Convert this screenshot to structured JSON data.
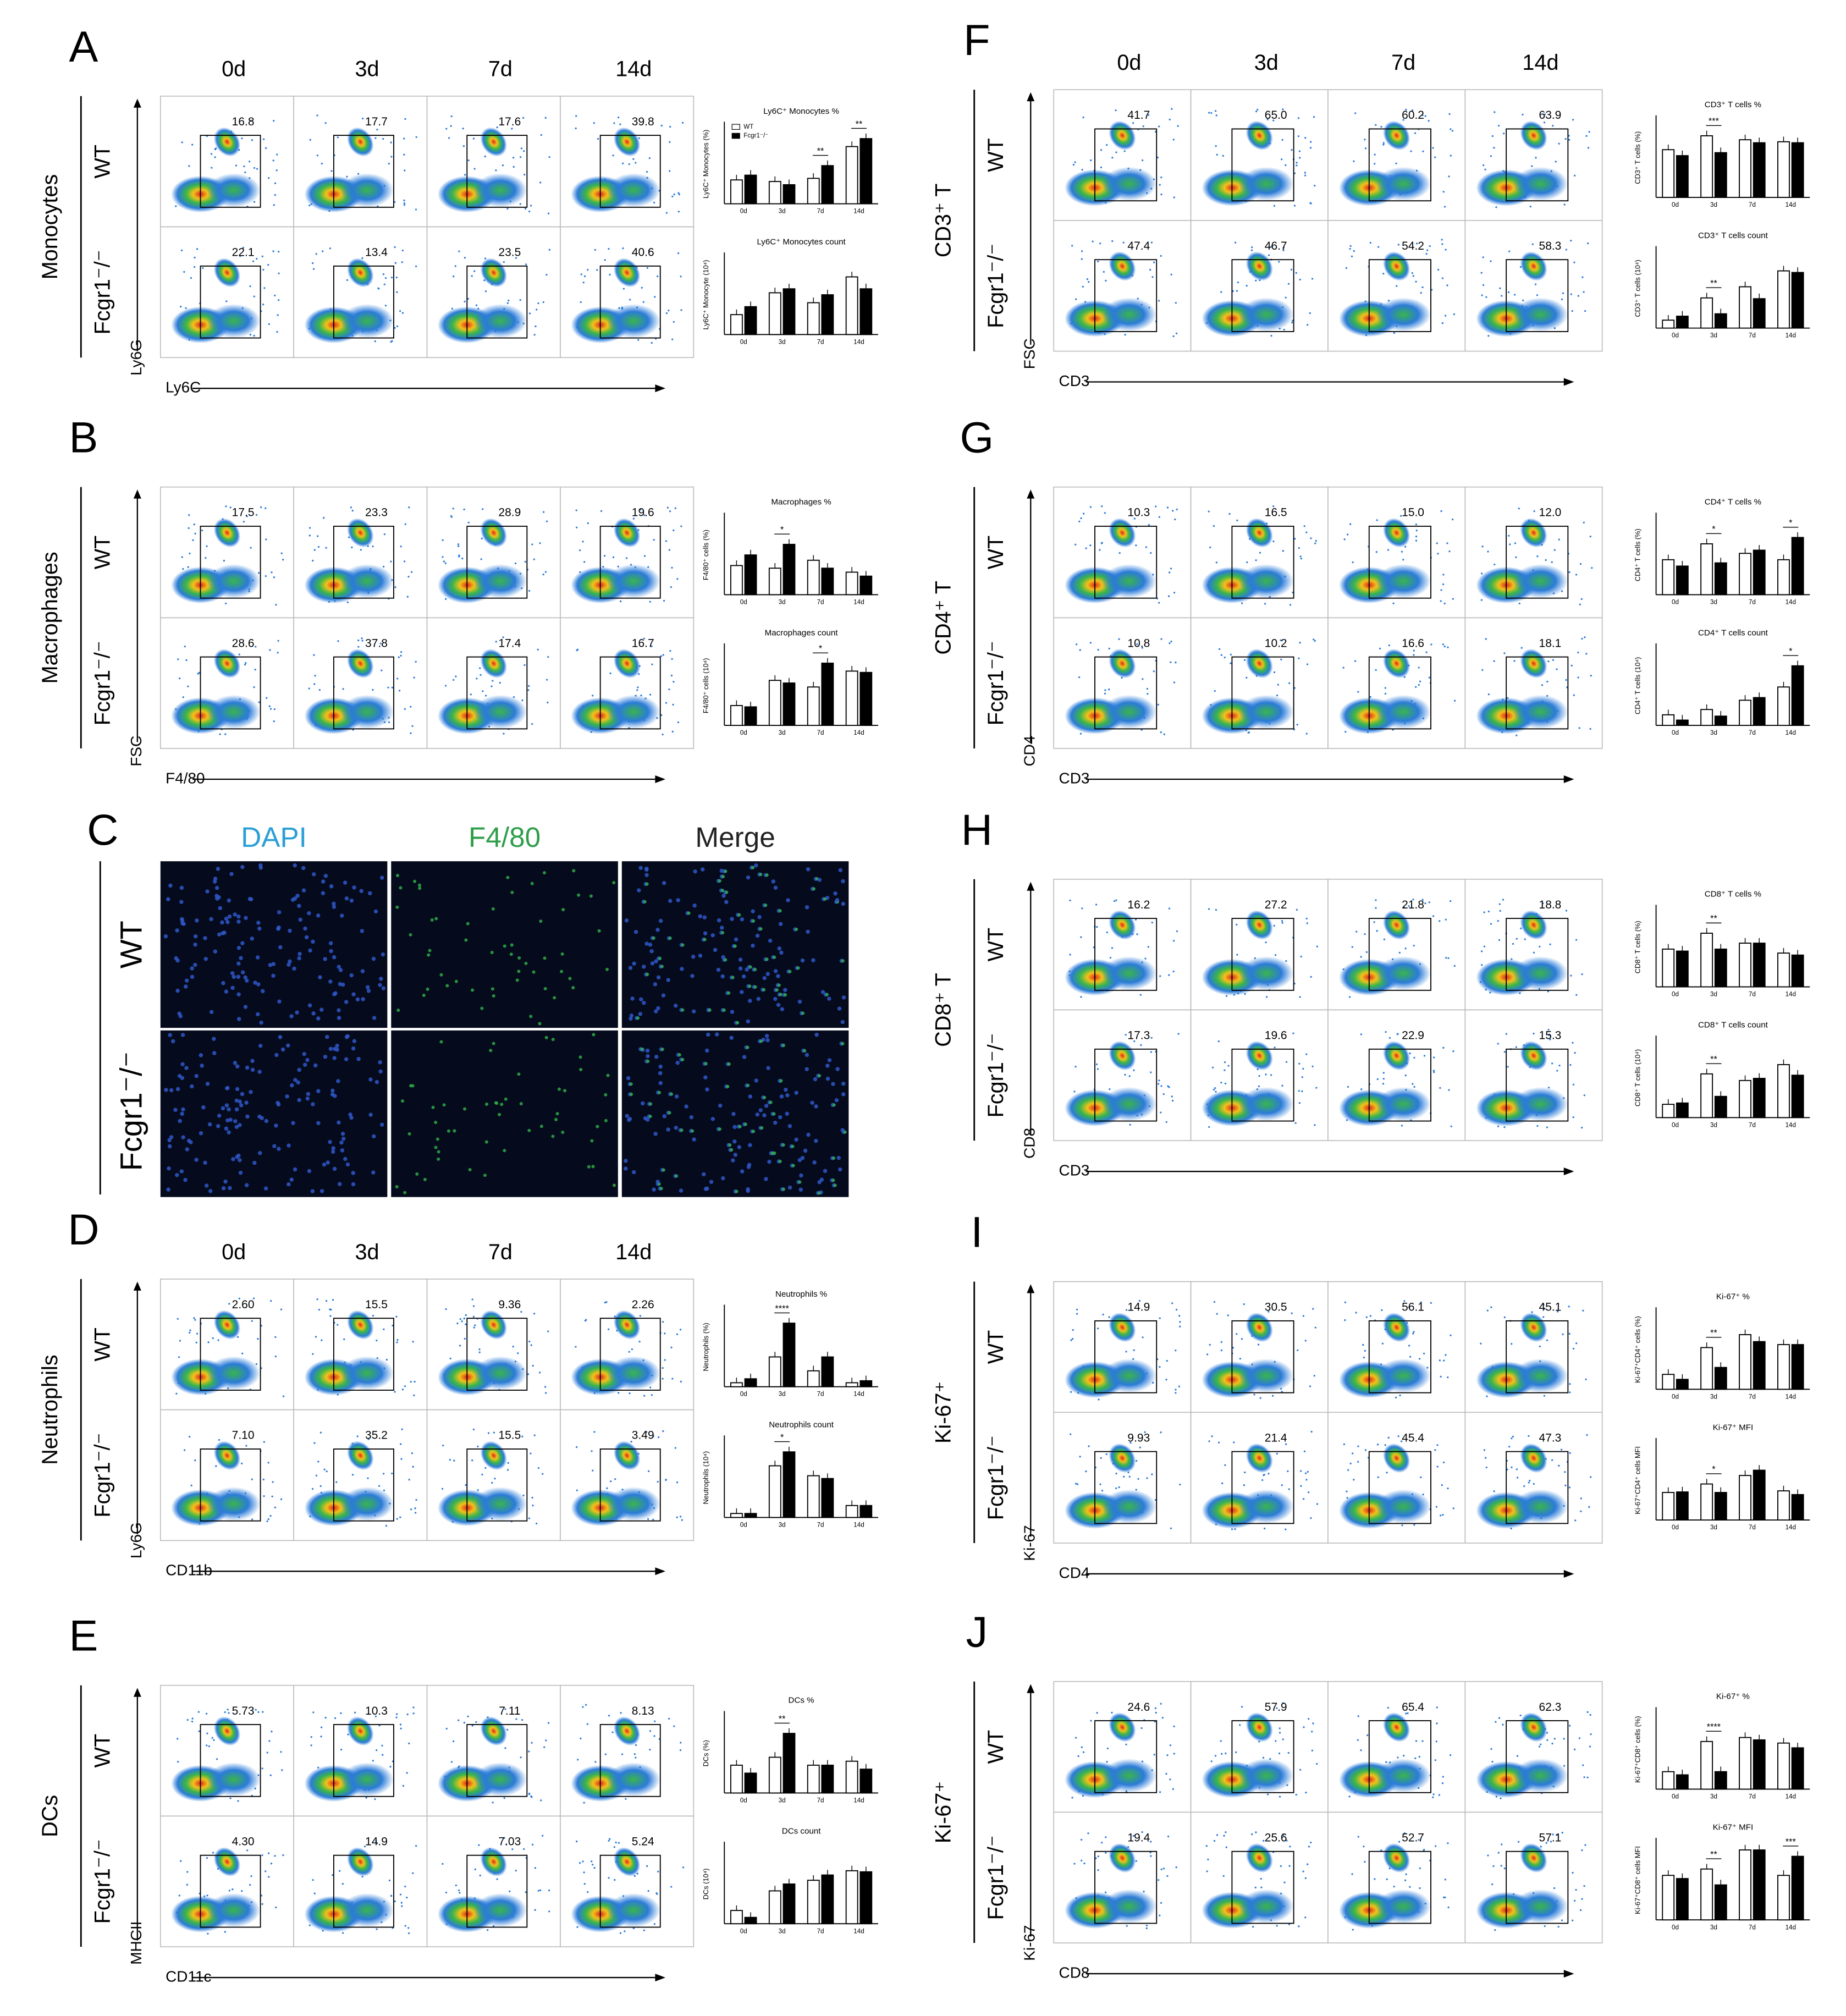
{
  "timepoints": [
    "0d",
    "3d",
    "7d",
    "14d"
  ],
  "genotypes": [
    "WT",
    "Fcgr1⁻/⁻"
  ],
  "image_panel": {
    "letter": "C",
    "channels": [
      {
        "name": "DAPI",
        "color": "#2a9fd6"
      },
      {
        "name": "F4/80",
        "color": "#2e9e4a"
      },
      {
        "name": "Merge",
        "color": "#222222"
      }
    ]
  },
  "panels": [
    {
      "letter": "A",
      "population": "Monocytes",
      "xlabel": "Ly6C",
      "ylabel": "Ly6G",
      "time_header": true,
      "gates": [
        [
          "16.8",
          "17.7",
          "17.6",
          "39.8"
        ],
        [
          "22.1",
          "13.4",
          "23.5",
          "40.6"
        ]
      ],
      "bars": [
        {
          "title": "Ly6C⁺ Monocytes %",
          "ylabel": "Ly6C⁺ Monocytes (%)",
          "ylim": [
            0,
            50
          ],
          "wt": [
            15,
            14,
            16,
            36
          ],
          "ko": [
            18,
            12,
            24,
            41
          ],
          "sig": [
            {
              "index": 2,
              "label": "**"
            },
            {
              "index": 3,
              "label": "**"
            }
          ],
          "legend": true
        },
        {
          "title": "Ly6C⁺ Monocytes count",
          "ylabel": "Ly6C⁺ Monocyte (10⁴)",
          "ylim": [
            0,
            80
          ],
          "wt": [
            20,
            42,
            32,
            58
          ],
          "ko": [
            28,
            46,
            40,
            46
          ],
          "sig": []
        }
      ]
    },
    {
      "letter": "B",
      "population": "Macrophages",
      "xlabel": "F4/80",
      "ylabel": "FSC",
      "time_header": false,
      "gates": [
        [
          "17.5",
          "23.3",
          "28.9",
          "19.6"
        ],
        [
          "28.6",
          "37.8",
          "17.4",
          "16.7"
        ]
      ],
      "bars": [
        {
          "title": "Macrophages %",
          "ylabel": "F4/80⁺ cells (%)",
          "ylim": [
            0,
            60
          ],
          "wt": [
            22,
            20,
            26,
            17
          ],
          "ko": [
            30,
            38,
            20,
            14
          ],
          "sig": [
            {
              "index": 1,
              "label": "*"
            }
          ]
        },
        {
          "title": "Macrophages count",
          "ylabel": "F4/80⁺ cells (10⁴)",
          "ylim": [
            0,
            300
          ],
          "wt": [
            75,
            170,
            145,
            205
          ],
          "ko": [
            70,
            160,
            235,
            200
          ],
          "sig": [
            {
              "index": 2,
              "label": "*"
            }
          ]
        }
      ]
    },
    {
      "letter": "D",
      "population": "Neutrophils",
      "xlabel": "CD11b",
      "ylabel": "Ly6G",
      "time_header": true,
      "gates": [
        [
          "2.60",
          "15.5",
          "9.36",
          "2.26"
        ],
        [
          "7.10",
          "35.2",
          "15.5",
          "3.49"
        ]
      ],
      "bars": [
        {
          "title": "Neutrophils %",
          "ylabel": "Neutrophils (%)",
          "ylim": [
            0,
            40
          ],
          "wt": [
            2,
            15,
            8,
            2
          ],
          "ko": [
            4,
            32,
            15,
            3
          ],
          "sig": [
            {
              "index": 1,
              "label": "****"
            }
          ]
        },
        {
          "title": "Neutrophils count",
          "ylabel": "Neutrophils (10⁴)",
          "ylim": [
            0,
            200
          ],
          "wt": [
            10,
            130,
            105,
            30
          ],
          "ko": [
            10,
            165,
            98,
            30
          ],
          "sig": [
            {
              "index": 1,
              "label": "*"
            }
          ]
        }
      ]
    },
    {
      "letter": "E",
      "population": "DCs",
      "xlabel": "CD11c",
      "ylabel": "MHCII",
      "time_header": false,
      "gates": [
        [
          "5.73",
          "10.3",
          "7.11",
          "8.13"
        ],
        [
          "4.30",
          "14.9",
          "7.03",
          "5.24"
        ]
      ],
      "bars": [
        {
          "title": "DCs %",
          "ylabel": "DCs (%)",
          "ylim": [
            0,
            20
          ],
          "wt": [
            7,
            9,
            7,
            8
          ],
          "ko": [
            5,
            15,
            7,
            6
          ],
          "sig": [
            {
              "index": 1,
              "label": "**"
            }
          ]
        },
        {
          "title": "DCs count",
          "ylabel": "DCs (10⁴)",
          "ylim": [
            0,
            150
          ],
          "wt": [
            25,
            62,
            82,
            100
          ],
          "ko": [
            12,
            75,
            92,
            98
          ],
          "sig": []
        }
      ]
    },
    {
      "letter": "F",
      "population": "CD3⁺ T",
      "xlabel": "CD3",
      "ylabel": "FSC",
      "time_header": true,
      "gates": [
        [
          "41.7",
          "65.0",
          "60.2",
          "63.9"
        ],
        [
          "47.4",
          "46.7",
          "54.2",
          "58.3"
        ]
      ],
      "bars": [
        {
          "title": "CD3⁺ T cells %",
          "ylabel": "CD3⁺ T cells (%)",
          "ylim": [
            0,
            80
          ],
          "wt": [
            48,
            62,
            58,
            56
          ],
          "ko": [
            42,
            45,
            55,
            55
          ],
          "sig": [
            {
              "index": 1,
              "label": "***"
            }
          ]
        },
        {
          "title": "CD3⁺ T cells count",
          "ylabel": "CD3⁺ T cells (10⁴)",
          "ylim": [
            0,
            1000
          ],
          "wt": [
            100,
            380,
            520,
            720
          ],
          "ko": [
            150,
            180,
            370,
            700
          ],
          "sig": [
            {
              "index": 1,
              "label": "**"
            }
          ]
        }
      ]
    },
    {
      "letter": "G",
      "population": "CD4⁺ T",
      "xlabel": "CD3",
      "ylabel": "CD4",
      "time_header": false,
      "gates": [
        [
          "10.3",
          "16.5",
          "15.0",
          "12.0"
        ],
        [
          "10.8",
          "10.2",
          "16.6",
          "18.1"
        ]
      ],
      "bars": [
        {
          "title": "CD4⁺ T cells %",
          "ylabel": "CD4⁺ T cells (%)",
          "ylim": [
            0,
            25
          ],
          "wt": [
            11,
            16,
            13,
            11
          ],
          "ko": [
            9,
            10,
            14,
            18
          ],
          "sig": [
            {
              "index": 1,
              "label": "*"
            },
            {
              "index": 3,
              "label": "*"
            }
          ]
        },
        {
          "title": "CD4⁺ T cells count",
          "ylabel": "CD4⁺ T cells (10⁴)",
          "ylim": [
            0,
            300
          ],
          "wt": [
            40,
            60,
            95,
            145
          ],
          "ko": [
            20,
            35,
            105,
            225
          ],
          "sig": [
            {
              "index": 3,
              "label": "*"
            }
          ]
        }
      ]
    },
    {
      "letter": "H",
      "population": "CD8⁺ T",
      "xlabel": "CD3",
      "ylabel": "CD8",
      "time_header": false,
      "gates": [
        [
          "16.2",
          "27.2",
          "21.8",
          "18.8"
        ],
        [
          "17.3",
          "19.6",
          "22.9",
          "15.3"
        ]
      ],
      "bars": [
        {
          "title": "CD8⁺ T cells %",
          "ylabel": "CD8⁺ T cells (%)",
          "ylim": [
            0,
            40
          ],
          "wt": [
            19,
            27,
            22,
            17
          ],
          "ko": [
            18,
            19,
            22,
            16
          ],
          "sig": [
            {
              "index": 1,
              "label": "**"
            }
          ]
        },
        {
          "title": "CD8⁺ T cells count",
          "ylabel": "CD8⁺ T cells (10⁴)",
          "ylim": [
            0,
            300
          ],
          "wt": [
            50,
            165,
            140,
            200
          ],
          "ko": [
            55,
            80,
            148,
            160
          ],
          "sig": [
            {
              "index": 1,
              "label": "**"
            }
          ]
        }
      ]
    },
    {
      "letter": "I",
      "population": "Ki-67⁺",
      "xlabel": "CD4",
      "ylabel": "Ki-67",
      "time_header": false,
      "gates": [
        [
          "14.9",
          "30.5",
          "56.1",
          "45.1"
        ],
        [
          "9.93",
          "21.4",
          "45.4",
          "47.3"
        ]
      ],
      "bars": [
        {
          "title": "Ki-67⁺ %",
          "ylabel": "Ki-67⁺CD4⁺ cells (%)",
          "ylim": [
            0,
            80
          ],
          "wt": [
            15,
            42,
            55,
            45
          ],
          "ko": [
            10,
            22,
            48,
            45
          ],
          "sig": [
            {
              "index": 1,
              "label": "**"
            }
          ]
        },
        {
          "title": "Ki-67⁺ MFI",
          "ylabel": "Ki-67⁺CD4⁺ cells MFI",
          "ylim": [
            0,
            15000
          ],
          "wt": [
            5200,
            6800,
            8400,
            5500
          ],
          "ko": [
            5300,
            5200,
            9400,
            4800
          ],
          "sig": [
            {
              "index": 1,
              "label": "*"
            }
          ]
        }
      ]
    },
    {
      "letter": "J",
      "population": "Ki-67⁺",
      "xlabel": "CD8",
      "ylabel": "Ki-67",
      "time_header": false,
      "gates": [
        [
          "24.6",
          "57.9",
          "65.4",
          "62.3"
        ],
        [
          "19.4",
          "25.6",
          "52.7",
          "57.1"
        ]
      ],
      "bars": [
        {
          "title": "Ki-67⁺ %",
          "ylabel": "Ki-67⁺CD8⁺ cells (%)",
          "ylim": [
            0,
            100
          ],
          "wt": [
            22,
            60,
            65,
            58
          ],
          "ko": [
            18,
            22,
            62,
            52
          ],
          "sig": [
            {
              "index": 1,
              "label": "****"
            }
          ]
        },
        {
          "title": "Ki-67⁺ MFI",
          "ylabel": "Ki-67⁺CD8⁺ cells MFI",
          "ylim": [
            0,
            25000
          ],
          "wt": [
            14000,
            16000,
            22000,
            14000
          ],
          "ko": [
            13000,
            11000,
            22000,
            20000
          ],
          "sig": [
            {
              "index": 1,
              "label": "**"
            },
            {
              "index": 3,
              "label": "***"
            }
          ]
        }
      ]
    }
  ]
}
